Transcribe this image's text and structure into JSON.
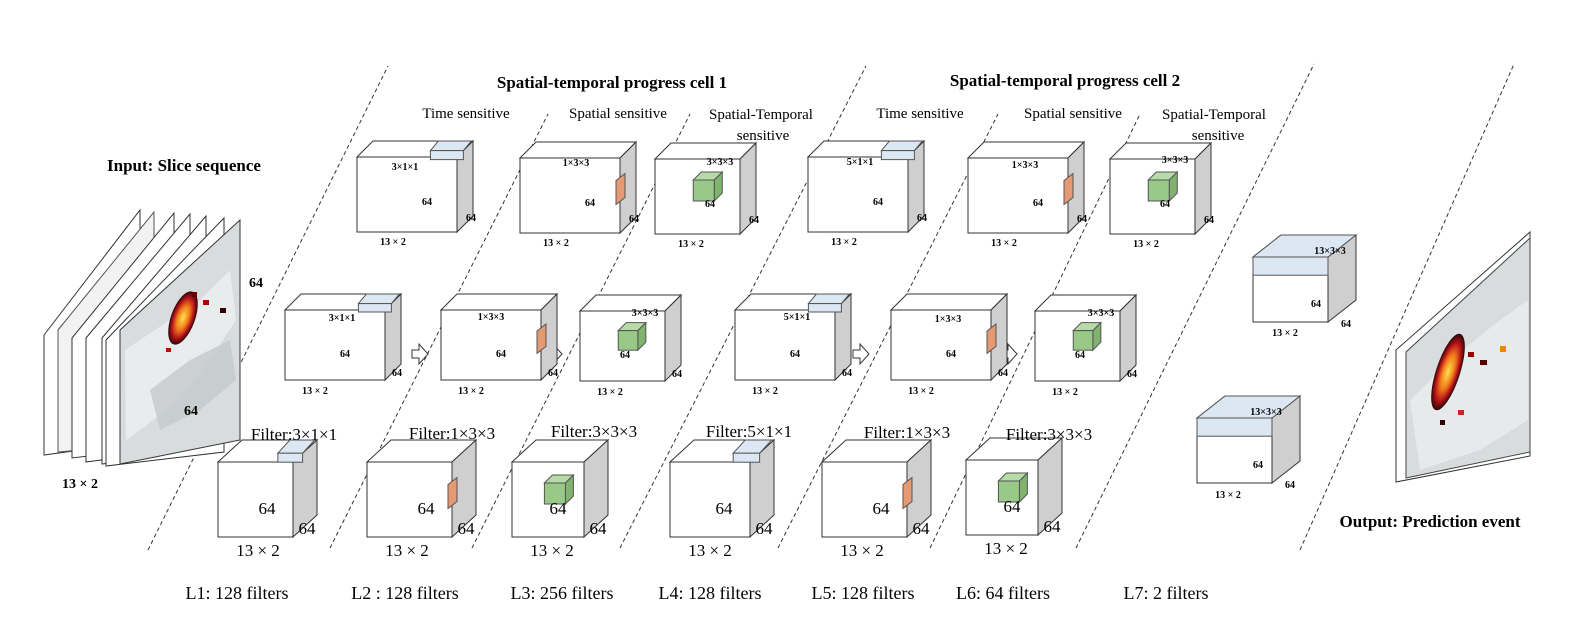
{
  "titles": {
    "input": "Input: Slice sequence",
    "cell1": "Spatial-temporal progress cell 1",
    "cell2": "Spatial-temporal progress cell 2",
    "output": "Output: Prediction event"
  },
  "cell_columns": {
    "time": "Time sensitive",
    "spatial": "Spatial sensitive",
    "st_line1": "Spatial-Temporal",
    "st_line2": "sensitive"
  },
  "input_labels": {
    "width": "13 × 2",
    "height": "64",
    "depth": "64"
  },
  "kernels": {
    "k311": "3×1×1",
    "k133": "1×3×3",
    "k333": "3×3×3",
    "k511": "5×1×1",
    "k1333": "13×3×3"
  },
  "dims": {
    "base": "13 × 2",
    "side": "64"
  },
  "filters": {
    "f311": "Filter:3×1×1",
    "f133": "Filter:1×3×3",
    "f333": "Filter:3×3×3",
    "f511": "Filter:5×1×1"
  },
  "layers": [
    "L1: 128 filters",
    "L2 : 128 filters",
    "L3: 256  filters",
    "L4: 128 filters",
    "L5: 128  filters",
    "L6: 64  filters",
    "L7: 2 filters"
  ],
  "colors": {
    "time_kernel": "#dbe8f4",
    "spatial_kernel": "#e49a73",
    "st_kernel": "#98c987",
    "cube_side": "#cfcfcf",
    "cube_top": "#ffffff",
    "map_bg": "#d8dcdc"
  }
}
